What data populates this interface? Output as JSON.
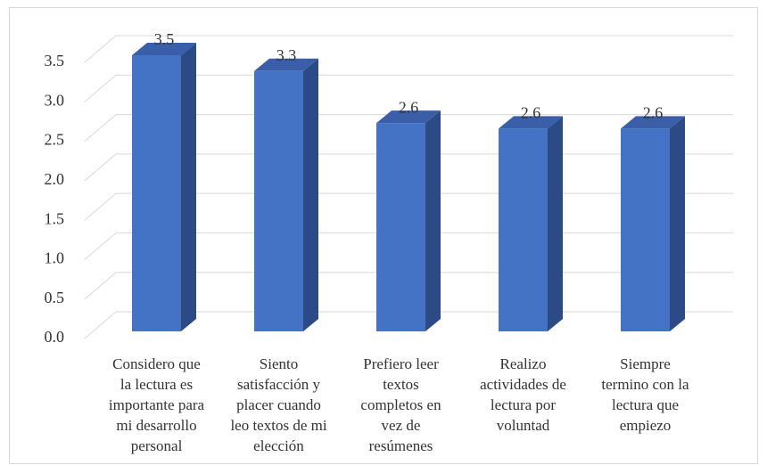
{
  "chart_data": {
    "type": "bar3d",
    "categories": [
      "Considero que\nla lectura es\nimportante para\nmi desarrollo\npersonal",
      "Siento\nsatisfacción y\nplacer cuando\nleo textos de mi\nelección",
      "Prefiero leer\ntextos\ncompletos en\nvez de\nresúmenes",
      "Realizo\nactividades de\nlectura por\nvoluntad",
      "Siempre\ntermino con la\nlectura que\nempiezo"
    ],
    "values": [
      3.5,
      3.3,
      2.64,
      2.57,
      2.57
    ],
    "value_labels": [
      "3.5",
      "3.3",
      "2.6",
      "2.6",
      "2.6"
    ],
    "color": "#4472c4",
    "ylim": [
      0,
      3.5
    ],
    "yticks": [
      {
        "value": 0,
        "label": "0.0"
      },
      {
        "value": 0.5,
        "label": "0.5"
      },
      {
        "value": 1,
        "label": "1.0"
      },
      {
        "value": 1.5,
        "label": "1.5"
      },
      {
        "value": 2,
        "label": "2.0"
      },
      {
        "value": 2.5,
        "label": "2.5"
      },
      {
        "value": 3,
        "label": "3.0"
      },
      {
        "value": 3.5,
        "label": "3.5"
      }
    ],
    "grid": true
  }
}
